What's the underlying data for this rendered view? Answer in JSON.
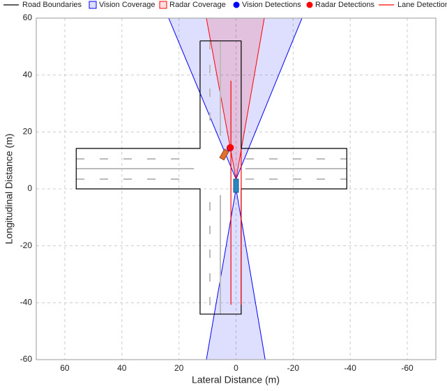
{
  "chart_data": {
    "type": "birdseye",
    "xlabel": "Lateral Distance (m)",
    "ylabel": "Longitudinal Distance (m)",
    "xlim": [
      70,
      -70
    ],
    "ylim": [
      -60,
      60
    ],
    "xticks": [
      60,
      40,
      20,
      0,
      -20,
      -40,
      -60
    ],
    "yticks": [
      -60,
      -40,
      -20,
      0,
      20,
      40,
      60
    ],
    "grid": true,
    "series": [
      {
        "name": "Road Boundaries",
        "kind": "line",
        "color": "#000000",
        "x": [
          12.6,
          -1.8,
          -1.8,
          -38.8,
          -38.8,
          -1.8,
          -1.8,
          12.6,
          12.6,
          56,
          56,
          12.6,
          12.6
        ],
        "y": [
          52,
          52,
          14.2,
          14.2,
          0,
          0,
          -44,
          -44,
          0,
          0,
          14.2,
          14.2,
          52
        ]
      },
      {
        "name": "Vision Coverage",
        "kind": "patch",
        "color": "#0000ff",
        "fill": "rgba(0,0,255,0.13)",
        "x": [
          0,
          23.6,
          -23.1,
          null,
          0,
          10.4,
          -10.2
        ],
        "y": [
          3.4,
          60,
          60,
          null,
          0,
          -60,
          -60
        ]
      },
      {
        "name": "Radar Coverage",
        "kind": "patch",
        "color": "#ff0000",
        "fill": "rgba(255,0,0,0.13)",
        "x": [
          0,
          10.4,
          -9.9
        ],
        "y": [
          3.4,
          60,
          60
        ]
      },
      {
        "name": "Vision Detections",
        "kind": "point",
        "color": "#0000ff",
        "x": [
          2.1
        ],
        "y": [
          14.4
        ]
      },
      {
        "name": "Radar Detections",
        "kind": "point",
        "color": "#ff0000",
        "x": [
          2.0
        ],
        "y": [
          14.5
        ]
      },
      {
        "name": "Lane Detections",
        "kind": "line",
        "color": "#ff0000",
        "x": [
          1.8,
          1.8,
          null,
          -1.8,
          -1.8
        ],
        "y": [
          38,
          -40.7,
          null,
          14,
          -40.7
        ]
      }
    ]
  }
}
